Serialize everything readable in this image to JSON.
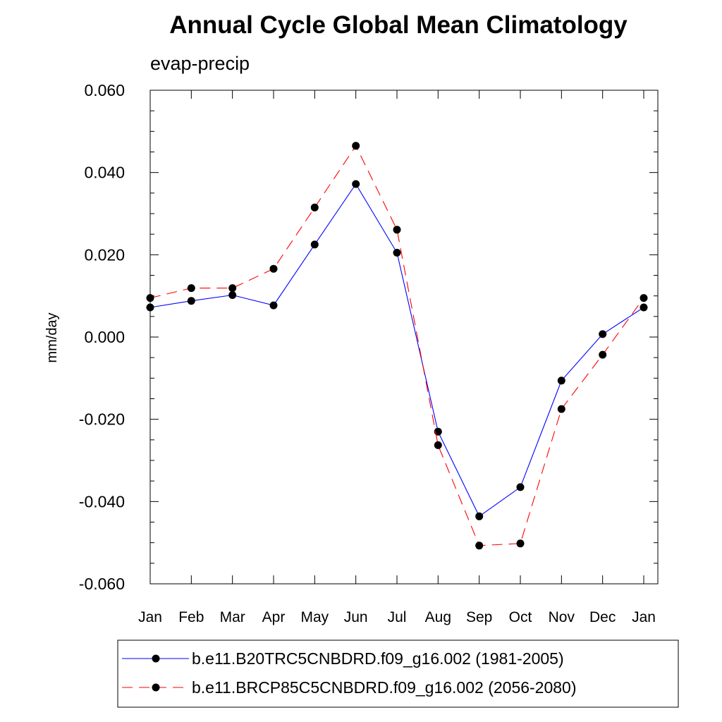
{
  "chart_data": {
    "type": "line",
    "title": "Annual Cycle Global Mean Climatology",
    "subtitle": "evap-precip",
    "xlabel": "",
    "ylabel": "mm/day",
    "categories": [
      "Jan",
      "Feb",
      "Mar",
      "Apr",
      "May",
      "Jun",
      "Jul",
      "Aug",
      "Sep",
      "Oct",
      "Nov",
      "Dec",
      "Jan"
    ],
    "ylim": [
      -0.06,
      0.06
    ],
    "yticks": [
      "0.060",
      "0.040",
      "0.020",
      "0.000",
      "-0.020",
      "-0.040",
      "-0.060"
    ],
    "ytick_values": [
      0.06,
      0.04,
      0.02,
      0.0,
      -0.02,
      -0.04,
      -0.06
    ],
    "legend_position": "bottom",
    "series": [
      {
        "name": "b.e11.B20TRC5CNBDRD.f09_g16.002 (1981-2005)",
        "color": "#0000ff",
        "line_style": "solid",
        "marker": "filled-circle",
        "values": [
          0.0072,
          0.0088,
          0.0102,
          0.0077,
          0.0225,
          0.0372,
          0.0205,
          -0.023,
          -0.0436,
          -0.0365,
          -0.0106,
          0.0007,
          0.0072
        ]
      },
      {
        "name": "b.e11.BRCP85C5CNBDRD.f09_g16.002 (2056-2080)",
        "color": "#ff0000",
        "line_style": "dashed",
        "marker": "filled-circle",
        "values": [
          0.0095,
          0.0119,
          0.0119,
          0.0166,
          0.0315,
          0.0465,
          0.0261,
          -0.0263,
          -0.0507,
          -0.0502,
          -0.0175,
          -0.0043,
          0.0095
        ]
      }
    ]
  }
}
